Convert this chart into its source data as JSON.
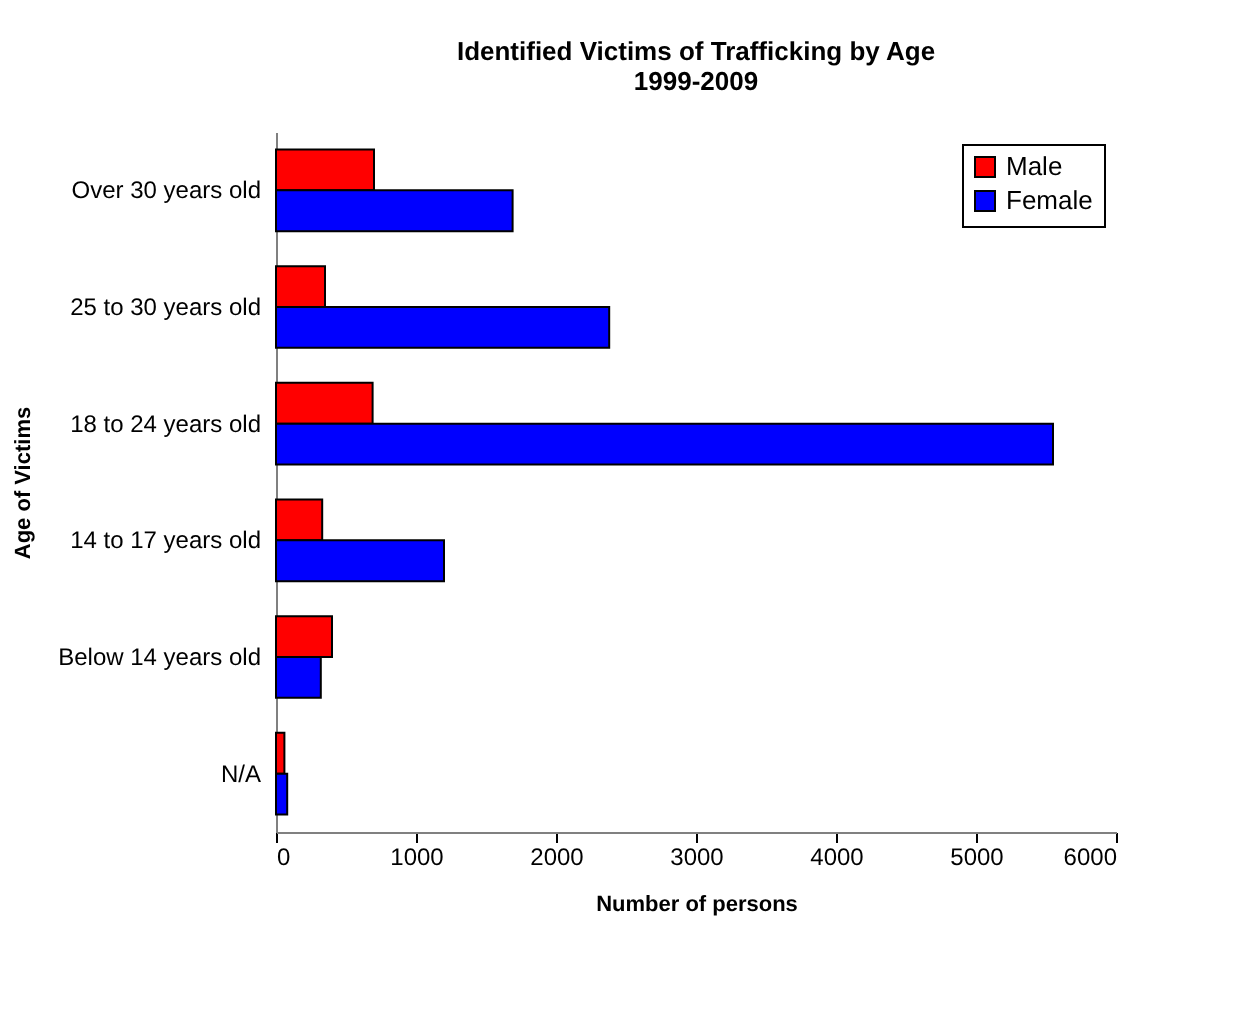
{
  "chart_data": {
    "type": "bar",
    "orientation": "horizontal",
    "title": "Identified Victims of Trafficking by Age\n1999-2009",
    "xlabel": "Number of persons",
    "ylabel": "Age of Victims",
    "categories": [
      "Over 30 years old",
      "25 to 30 years old",
      "18 to 24 years old",
      "14 to 17 years old",
      "Below 14 years old",
      "N/A"
    ],
    "series": [
      {
        "name": "Male",
        "color": "#ff0000",
        "values": [
          700,
          350,
          690,
          330,
          400,
          60
        ]
      },
      {
        "name": "Female",
        "color": "#0000ff",
        "values": [
          1690,
          2380,
          5550,
          1200,
          320,
          80
        ]
      }
    ],
    "xlim": [
      0,
      6000
    ],
    "xticks": [
      0,
      1000,
      2000,
      3000,
      4000,
      5000,
      6000
    ],
    "grid": false,
    "legend": "top right"
  }
}
